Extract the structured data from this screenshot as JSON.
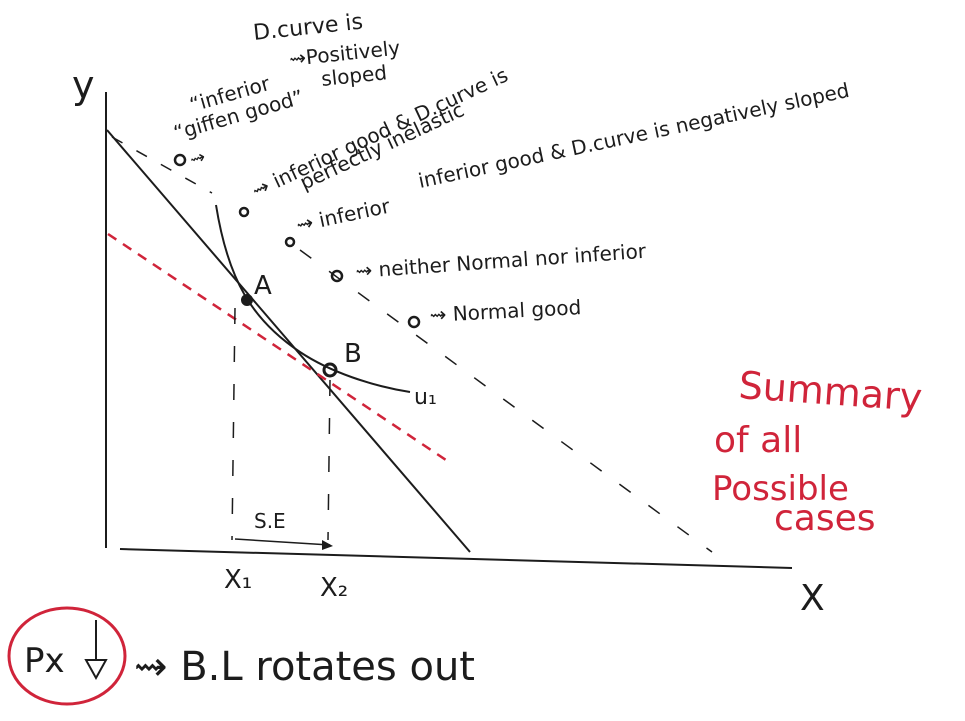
{
  "axes": {
    "y_label": "y",
    "x_label": "X"
  },
  "points": {
    "a": "A",
    "b": "B",
    "x1": "X₁",
    "x2": "X₂",
    "se": "S.E",
    "u1": "u₁"
  },
  "annotations": {
    "dcurve_pos_1": "D.curve is",
    "dcurve_pos_2": "⇝Positively",
    "dcurve_pos_3": "sloped",
    "giffen_1": "“inferior",
    "giffen_2": "“giffen good”",
    "giffen_arrow": "⇝",
    "inelastic_1": "⇝ inferior good & D.curve is",
    "inelastic_2": "perfectly inelastic",
    "neg_sloped": "inferior good & D.curve is negatively sloped",
    "inferior_arrow": "⇝ inferior",
    "neither": "⇝ neither Normal nor inferior",
    "normal": "⇝ Normal good"
  },
  "summary": {
    "line1": "Summary",
    "line2": "of all",
    "line3": "Possible",
    "line4": "cases"
  },
  "footer": {
    "px": "Px",
    "rotates": "⇝ B.L rotates out"
  },
  "colors": {
    "ink": "#1c1c1c",
    "red": "#d0243a"
  }
}
